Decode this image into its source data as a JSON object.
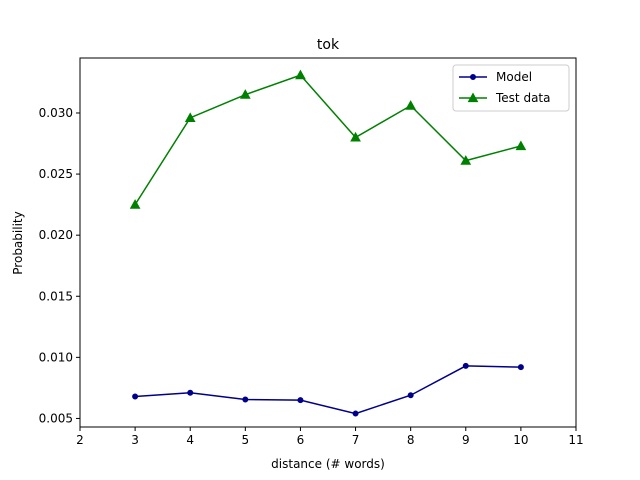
{
  "chart_data": {
    "type": "line",
    "title": "tok",
    "xlabel": "distance (# words)",
    "ylabel": "Probability",
    "xlim": [
      2,
      11
    ],
    "ylim": [
      0.0043,
      0.0345
    ],
    "xticks": [
      2,
      3,
      4,
      5,
      6,
      7,
      8,
      9,
      10,
      11
    ],
    "xtick_labels": [
      "2",
      "3",
      "4",
      "5",
      "6",
      "7",
      "8",
      "9",
      "10",
      "11"
    ],
    "yticks": [
      0.005,
      0.01,
      0.015,
      0.02,
      0.025,
      0.03
    ],
    "ytick_labels": [
      "0.005",
      "0.010",
      "0.015",
      "0.020",
      "0.025",
      "0.030"
    ],
    "grid": false,
    "legend_position": "top-right",
    "x": [
      3,
      4,
      5,
      6,
      7,
      8,
      9,
      10
    ],
    "series": [
      {
        "name": "Model",
        "color": "#00008b",
        "marker": "circle",
        "values": [
          0.0068,
          0.0071,
          0.00655,
          0.0065,
          0.0054,
          0.0069,
          0.0093,
          0.0092
        ]
      },
      {
        "name": "Test data",
        "color": "#008000",
        "marker": "triangle",
        "values": [
          0.0225,
          0.0296,
          0.0315,
          0.0331,
          0.028,
          0.0306,
          0.0261,
          0.0273
        ]
      }
    ]
  }
}
